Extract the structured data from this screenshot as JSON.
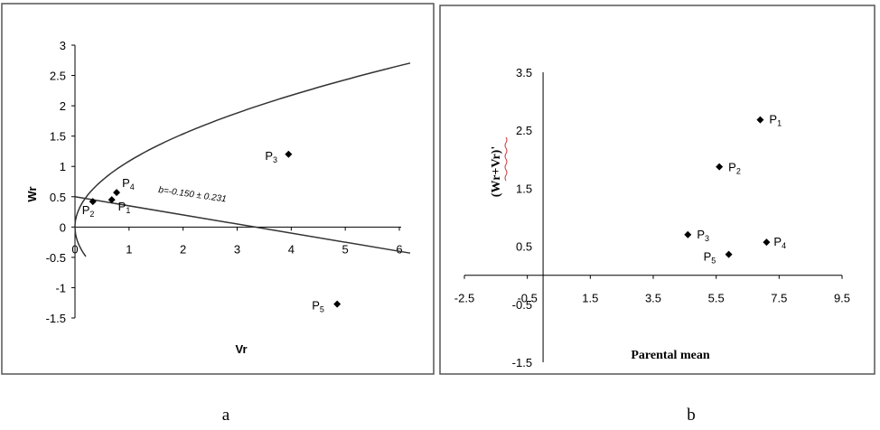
{
  "colors": {
    "frame": "#555555",
    "axis": "#000000",
    "marker": "#000000",
    "wavy_underline": "#cc3333"
  },
  "chart_data": [
    {
      "type": "scatter",
      "panel_label": "a",
      "xlabel": "Vr",
      "ylabel": "Wr",
      "xlim": [
        0,
        6
      ],
      "ylim": [
        -1.5,
        3
      ],
      "x_ticks": [
        "0",
        "1",
        "2",
        "3",
        "4",
        "5",
        "6"
      ],
      "y_ticks": [
        "3",
        "2.5",
        "2",
        "1.5",
        "1",
        "0.5",
        "0",
        "-0.5",
        "-1",
        "-1.5"
      ],
      "grid": false,
      "points": [
        {
          "label": "P",
          "sub": "1",
          "x": 0.68,
          "y": 0.45
        },
        {
          "label": "P",
          "sub": "2",
          "x": 0.33,
          "y": 0.42
        },
        {
          "label": "P",
          "sub": "3",
          "x": 3.95,
          "y": 1.2
        },
        {
          "label": "P",
          "sub": "4",
          "x": 0.77,
          "y": 0.57
        },
        {
          "label": "P",
          "sub": "5",
          "x": 4.85,
          "y": -1.27
        }
      ],
      "regression": {
        "intercept": 0.5,
        "slope": -0.15,
        "annotation": "b=-0.150 ± 0.231"
      },
      "limiting_parabola": true
    },
    {
      "type": "scatter",
      "panel_label": "b",
      "xlabel": "Parental mean",
      "ylabel": "(Wr+Vr)'",
      "xlim": [
        -2.5,
        9.5
      ],
      "ylim": [
        -1.5,
        3.5
      ],
      "x_ticks": [
        "-2.5",
        "-0.5",
        "1.5",
        "3.5",
        "5.5",
        "7.5",
        "9.5"
      ],
      "y_ticks": [
        "3.5",
        "2.5",
        "1.5",
        "0.5",
        "-0.5",
        "-1.5"
      ],
      "grid": false,
      "points": [
        {
          "label": "P",
          "sub": "1",
          "x": 6.9,
          "y": 2.68
        },
        {
          "label": "P",
          "sub": "2",
          "x": 5.6,
          "y": 1.87
        },
        {
          "label": "P",
          "sub": "3",
          "x": 4.6,
          "y": 0.7
        },
        {
          "label": "P",
          "sub": "4",
          "x": 7.1,
          "y": 0.57
        },
        {
          "label": "P",
          "sub": "5",
          "x": 5.9,
          "y": 0.36
        }
      ]
    }
  ]
}
